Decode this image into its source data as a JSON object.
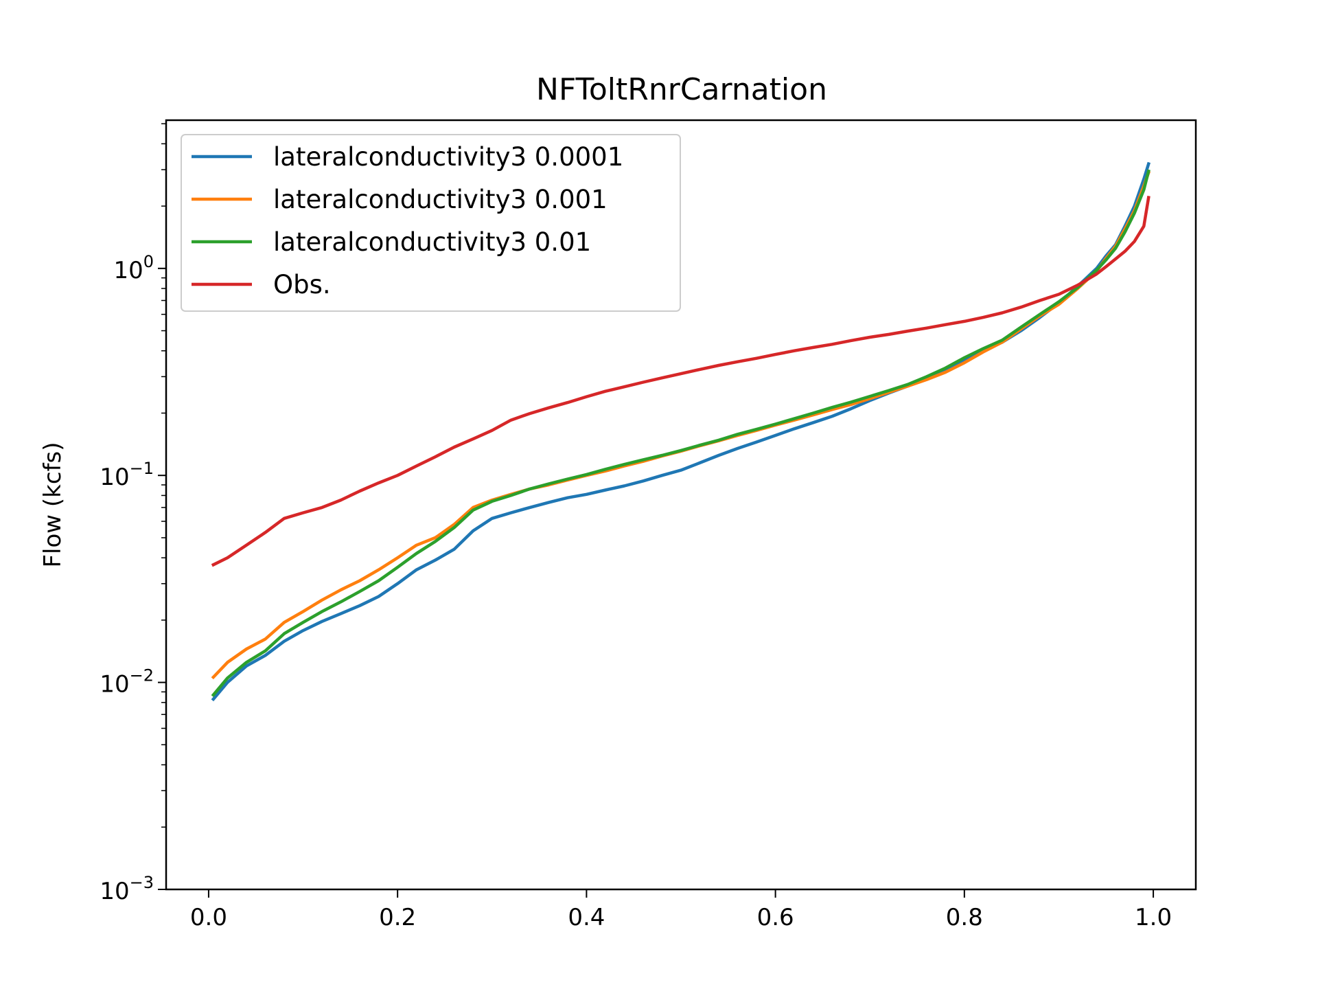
{
  "chart_data": {
    "type": "line",
    "title": "NFToltRnrCarnation",
    "xlabel": "",
    "ylabel": "Flow (kcfs)",
    "xlim": [
      -0.045,
      1.045
    ],
    "ylim": [
      0.001,
      5.2
    ],
    "yscale": "log",
    "grid": false,
    "legend_position": "top-left",
    "x_ticks": [
      {
        "value": 0.0,
        "label": "0.0"
      },
      {
        "value": 0.2,
        "label": "0.2"
      },
      {
        "value": 0.4,
        "label": "0.4"
      },
      {
        "value": 0.6,
        "label": "0.6"
      },
      {
        "value": 0.8,
        "label": "0.8"
      },
      {
        "value": 1.0,
        "label": "1.0"
      }
    ],
    "y_ticks": [
      {
        "value": 0.001,
        "base": "10",
        "exp": "−3"
      },
      {
        "value": 0.01,
        "base": "10",
        "exp": "−2"
      },
      {
        "value": 0.1,
        "base": "10",
        "exp": "−1"
      },
      {
        "value": 1,
        "base": "10",
        "exp": "0"
      }
    ],
    "x": [
      0.005,
      0.02,
      0.04,
      0.06,
      0.08,
      0.1,
      0.12,
      0.14,
      0.16,
      0.18,
      0.2,
      0.22,
      0.24,
      0.26,
      0.28,
      0.3,
      0.32,
      0.34,
      0.36,
      0.38,
      0.4,
      0.42,
      0.44,
      0.46,
      0.48,
      0.5,
      0.52,
      0.54,
      0.56,
      0.58,
      0.6,
      0.62,
      0.64,
      0.66,
      0.68,
      0.7,
      0.72,
      0.74,
      0.76,
      0.78,
      0.8,
      0.82,
      0.84,
      0.86,
      0.88,
      0.9,
      0.92,
      0.94,
      0.95,
      0.96,
      0.97,
      0.98,
      0.99,
      0.995
    ],
    "series": [
      {
        "name": "lateralconductivity3 0.0001",
        "color": "#1f77b4",
        "values": [
          0.0083,
          0.01,
          0.012,
          0.0135,
          0.0158,
          0.0178,
          0.0197,
          0.0215,
          0.0235,
          0.026,
          0.03,
          0.035,
          0.039,
          0.044,
          0.054,
          0.062,
          0.066,
          0.07,
          0.074,
          0.078,
          0.081,
          0.085,
          0.089,
          0.094,
          0.1,
          0.106,
          0.115,
          0.125,
          0.135,
          0.145,
          0.156,
          0.168,
          0.18,
          0.193,
          0.21,
          0.23,
          0.25,
          0.27,
          0.295,
          0.32,
          0.36,
          0.4,
          0.44,
          0.5,
          0.58,
          0.68,
          0.82,
          1.0,
          1.15,
          1.3,
          1.6,
          2.0,
          2.7,
          3.2
        ]
      },
      {
        "name": "lateralconductivity3 0.001",
        "color": "#ff7f0e",
        "values": [
          0.0106,
          0.0125,
          0.0145,
          0.0162,
          0.0195,
          0.022,
          0.025,
          0.028,
          0.031,
          0.035,
          0.04,
          0.046,
          0.05,
          0.058,
          0.07,
          0.076,
          0.081,
          0.086,
          0.09,
          0.095,
          0.1,
          0.105,
          0.111,
          0.117,
          0.124,
          0.131,
          0.139,
          0.147,
          0.156,
          0.165,
          0.175,
          0.185,
          0.196,
          0.208,
          0.22,
          0.235,
          0.252,
          0.27,
          0.29,
          0.315,
          0.35,
          0.395,
          0.44,
          0.51,
          0.59,
          0.67,
          0.8,
          0.97,
          1.12,
          1.28,
          1.55,
          1.9,
          2.5,
          2.9
        ]
      },
      {
        "name": "lateralconductivity3 0.01",
        "color": "#2ca02c",
        "values": [
          0.0087,
          0.0105,
          0.0125,
          0.0142,
          0.0172,
          0.0195,
          0.022,
          0.0245,
          0.0275,
          0.031,
          0.036,
          0.042,
          0.048,
          0.056,
          0.068,
          0.075,
          0.08,
          0.086,
          0.091,
          0.096,
          0.101,
          0.107,
          0.113,
          0.119,
          0.125,
          0.132,
          0.14,
          0.148,
          0.158,
          0.167,
          0.177,
          0.188,
          0.2,
          0.213,
          0.226,
          0.241,
          0.257,
          0.275,
          0.3,
          0.33,
          0.37,
          0.41,
          0.45,
          0.52,
          0.6,
          0.69,
          0.81,
          0.98,
          1.1,
          1.25,
          1.5,
          1.85,
          2.4,
          2.95
        ]
      },
      {
        "name": "Obs.",
        "color": "#d62728",
        "values": [
          0.037,
          0.04,
          0.046,
          0.053,
          0.062,
          0.066,
          0.07,
          0.076,
          0.084,
          0.092,
          0.1,
          0.111,
          0.123,
          0.137,
          0.15,
          0.165,
          0.185,
          0.199,
          0.212,
          0.225,
          0.24,
          0.255,
          0.268,
          0.282,
          0.296,
          0.31,
          0.325,
          0.34,
          0.354,
          0.368,
          0.384,
          0.4,
          0.415,
          0.43,
          0.448,
          0.465,
          0.48,
          0.498,
          0.515,
          0.535,
          0.555,
          0.58,
          0.61,
          0.65,
          0.7,
          0.75,
          0.83,
          0.94,
          1.02,
          1.11,
          1.21,
          1.35,
          1.6,
          2.2
        ]
      }
    ]
  }
}
